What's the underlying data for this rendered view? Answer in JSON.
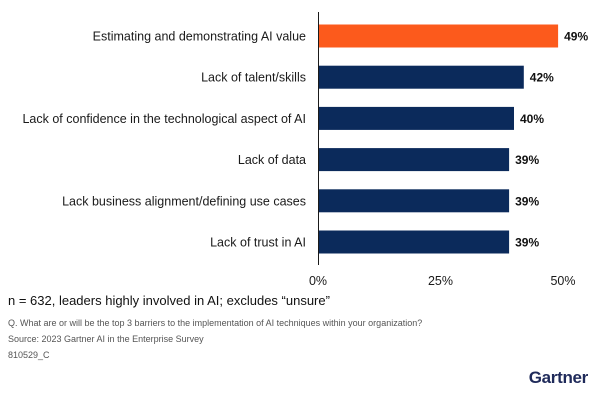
{
  "chart_data": {
    "type": "bar",
    "orientation": "horizontal",
    "categories": [
      "Estimating and demonstrating AI value",
      "Lack of talent/skills",
      "Lack of confidence in the technological aspect of AI",
      "Lack of data",
      "Lack business alignment/defining use cases",
      "Lack of trust in AI"
    ],
    "values": [
      49,
      42,
      40,
      39,
      39,
      39
    ],
    "value_labels": [
      "49%",
      "42%",
      "40%",
      "39%",
      "39%",
      "39%"
    ],
    "highlight_index": 0,
    "colors": {
      "highlight": "#fc5a1c",
      "default": "#0b2a5b"
    },
    "xlim": [
      0,
      50
    ],
    "xticks": [
      0,
      25,
      50
    ],
    "xtick_labels": [
      "0%",
      "25%",
      "50%"
    ],
    "grid": false,
    "title": "",
    "xlabel": "",
    "ylabel": ""
  },
  "notes": {
    "sample": "n = 632, leaders highly involved in AI; excludes “unsure”",
    "question": "Q. What are or will be the top 3 barriers to the implementation of AI techniques within your organization?",
    "source": "Source: 2023 Gartner AI in the Enterprise Survey",
    "code": "810529_C"
  },
  "brand": {
    "logo_text": "Gartner",
    "color": "#1f2a5a"
  }
}
